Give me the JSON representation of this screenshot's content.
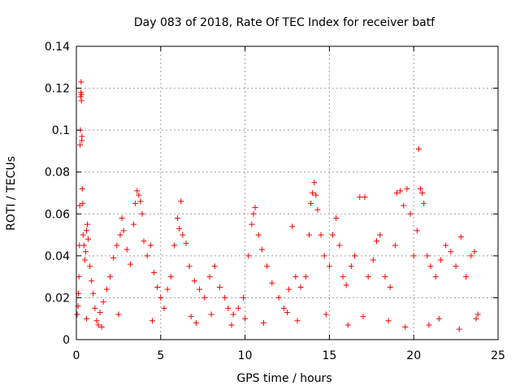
{
  "chart_data": {
    "type": "scatter",
    "title": "Day 083 of 2018, Rate Of TEC Index for receiver batf",
    "xlabel": "GPS time / hours",
    "ylabel": "ROTI / TECUs",
    "xlim": [
      0,
      25
    ],
    "ylim": [
      0,
      0.14
    ],
    "x_ticks": [
      0,
      5,
      10,
      15,
      20,
      25
    ],
    "y_ticks": [
      0,
      0.02,
      0.04,
      0.06,
      0.08,
      0.1,
      0.12,
      0.14
    ],
    "x_tick_labels": [
      "0",
      "5",
      "10",
      "15",
      "20",
      "25"
    ],
    "y_tick_labels": [
      "0",
      "0.02",
      "0.04",
      "0.06",
      "0.08",
      "0.1",
      "0.12",
      "0.14"
    ],
    "grid": true,
    "marker": "+",
    "color": "#ff0000",
    "series": [
      {
        "name": "ROTI",
        "points": [
          [
            0.05,
            0.012
          ],
          [
            0.1,
            0.016
          ],
          [
            0.12,
            0.022
          ],
          [
            0.15,
            0.03
          ],
          [
            0.18,
            0.045
          ],
          [
            0.2,
            0.064
          ],
          [
            0.22,
            0.093
          ],
          [
            0.24,
            0.1
          ],
          [
            0.25,
            0.116
          ],
          [
            0.27,
            0.118
          ],
          [
            0.28,
            0.123
          ],
          [
            0.3,
            0.114
          ],
          [
            0.3,
            0.117
          ],
          [
            0.32,
            0.095
          ],
          [
            0.33,
            0.097
          ],
          [
            0.35,
            0.072
          ],
          [
            0.38,
            0.065
          ],
          [
            0.4,
            0.05
          ],
          [
            0.45,
            0.045
          ],
          [
            0.5,
            0.038
          ],
          [
            0.55,
            0.042
          ],
          [
            0.6,
            0.052
          ],
          [
            0.65,
            0.055
          ],
          [
            0.7,
            0.048
          ],
          [
            0.8,
            0.035
          ],
          [
            0.9,
            0.028
          ],
          [
            1.0,
            0.022
          ],
          [
            1.1,
            0.015
          ],
          [
            1.2,
            0.009
          ],
          [
            1.3,
            0.007
          ],
          [
            1.4,
            0.013
          ],
          [
            1.6,
            0.018
          ],
          [
            1.8,
            0.024
          ],
          [
            2.0,
            0.03
          ],
          [
            2.2,
            0.039
          ],
          [
            2.4,
            0.045
          ],
          [
            2.6,
            0.05
          ],
          [
            2.7,
            0.058
          ],
          [
            2.8,
            0.052
          ],
          [
            3.0,
            0.043
          ],
          [
            3.2,
            0.036
          ],
          [
            3.4,
            0.055
          ],
          [
            3.5,
            0.065
          ],
          [
            3.6,
            0.071
          ],
          [
            3.7,
            0.069
          ],
          [
            3.8,
            0.066
          ],
          [
            3.9,
            0.06
          ],
          [
            4.0,
            0.047
          ],
          [
            4.2,
            0.04
          ],
          [
            4.4,
            0.045
          ],
          [
            4.6,
            0.032
          ],
          [
            4.8,
            0.025
          ],
          [
            5.0,
            0.02
          ],
          [
            5.2,
            0.015
          ],
          [
            5.4,
            0.024
          ],
          [
            5.6,
            0.03
          ],
          [
            5.8,
            0.045
          ],
          [
            6.0,
            0.058
          ],
          [
            6.1,
            0.053
          ],
          [
            6.2,
            0.066
          ],
          [
            6.3,
            0.05
          ],
          [
            6.5,
            0.046
          ],
          [
            6.7,
            0.035
          ],
          [
            7.0,
            0.028
          ],
          [
            7.3,
            0.024
          ],
          [
            7.6,
            0.02
          ],
          [
            7.9,
            0.03
          ],
          [
            8.2,
            0.035
          ],
          [
            8.5,
            0.025
          ],
          [
            8.8,
            0.02
          ],
          [
            9.0,
            0.015
          ],
          [
            9.3,
            0.012
          ],
          [
            9.6,
            0.015
          ],
          [
            9.9,
            0.02
          ],
          [
            10.2,
            0.04
          ],
          [
            10.4,
            0.055
          ],
          [
            10.5,
            0.06
          ],
          [
            10.6,
            0.063
          ],
          [
            10.8,
            0.05
          ],
          [
            11.0,
            0.043
          ],
          [
            11.3,
            0.035
          ],
          [
            11.6,
            0.027
          ],
          [
            12.0,
            0.02
          ],
          [
            12.3,
            0.015
          ],
          [
            12.6,
            0.024
          ],
          [
            12.8,
            0.054
          ],
          [
            13.0,
            0.03
          ],
          [
            13.3,
            0.025
          ],
          [
            13.6,
            0.03
          ],
          [
            13.8,
            0.05
          ],
          [
            13.9,
            0.065
          ],
          [
            14.0,
            0.07
          ],
          [
            14.1,
            0.075
          ],
          [
            14.2,
            0.069
          ],
          [
            14.3,
            0.062
          ],
          [
            14.5,
            0.05
          ],
          [
            14.7,
            0.04
          ],
          [
            15.0,
            0.035
          ],
          [
            15.2,
            0.05
          ],
          [
            15.4,
            0.058
          ],
          [
            15.6,
            0.045
          ],
          [
            15.8,
            0.03
          ],
          [
            16.0,
            0.026
          ],
          [
            16.3,
            0.035
          ],
          [
            16.5,
            0.04
          ],
          [
            16.8,
            0.068
          ],
          [
            17.1,
            0.068
          ],
          [
            17.3,
            0.03
          ],
          [
            17.6,
            0.038
          ],
          [
            17.8,
            0.047
          ],
          [
            18.0,
            0.05
          ],
          [
            18.3,
            0.03
          ],
          [
            18.6,
            0.025
          ],
          [
            18.9,
            0.045
          ],
          [
            19.0,
            0.07
          ],
          [
            19.2,
            0.071
          ],
          [
            19.4,
            0.064
          ],
          [
            19.6,
            0.072
          ],
          [
            19.8,
            0.06
          ],
          [
            20.0,
            0.04
          ],
          [
            20.2,
            0.052
          ],
          [
            20.3,
            0.091
          ],
          [
            20.4,
            0.072
          ],
          [
            20.5,
            0.07
          ],
          [
            20.6,
            0.065
          ],
          [
            20.8,
            0.04
          ],
          [
            21.0,
            0.035
          ],
          [
            21.3,
            0.03
          ],
          [
            21.6,
            0.038
          ],
          [
            21.9,
            0.045
          ],
          [
            22.2,
            0.042
          ],
          [
            22.5,
            0.035
          ],
          [
            22.8,
            0.049
          ],
          [
            23.1,
            0.03
          ],
          [
            23.4,
            0.04
          ],
          [
            23.6,
            0.042
          ],
          [
            23.7,
            0.01
          ],
          [
            23.8,
            0.012
          ],
          [
            0.6,
            0.01
          ],
          [
            1.5,
            0.006
          ],
          [
            4.5,
            0.009
          ],
          [
            7.1,
            0.008
          ],
          [
            9.2,
            0.007
          ],
          [
            11.1,
            0.008
          ],
          [
            13.1,
            0.009
          ],
          [
            16.1,
            0.007
          ],
          [
            19.5,
            0.006
          ],
          [
            20.9,
            0.007
          ],
          [
            22.7,
            0.005
          ],
          [
            8.0,
            0.012
          ],
          [
            10.0,
            0.01
          ],
          [
            12.5,
            0.013
          ],
          [
            14.8,
            0.012
          ],
          [
            17.0,
            0.011
          ],
          [
            21.5,
            0.01
          ],
          [
            2.5,
            0.012
          ],
          [
            6.8,
            0.011
          ],
          [
            18.5,
            0.009
          ]
        ]
      }
    ]
  }
}
